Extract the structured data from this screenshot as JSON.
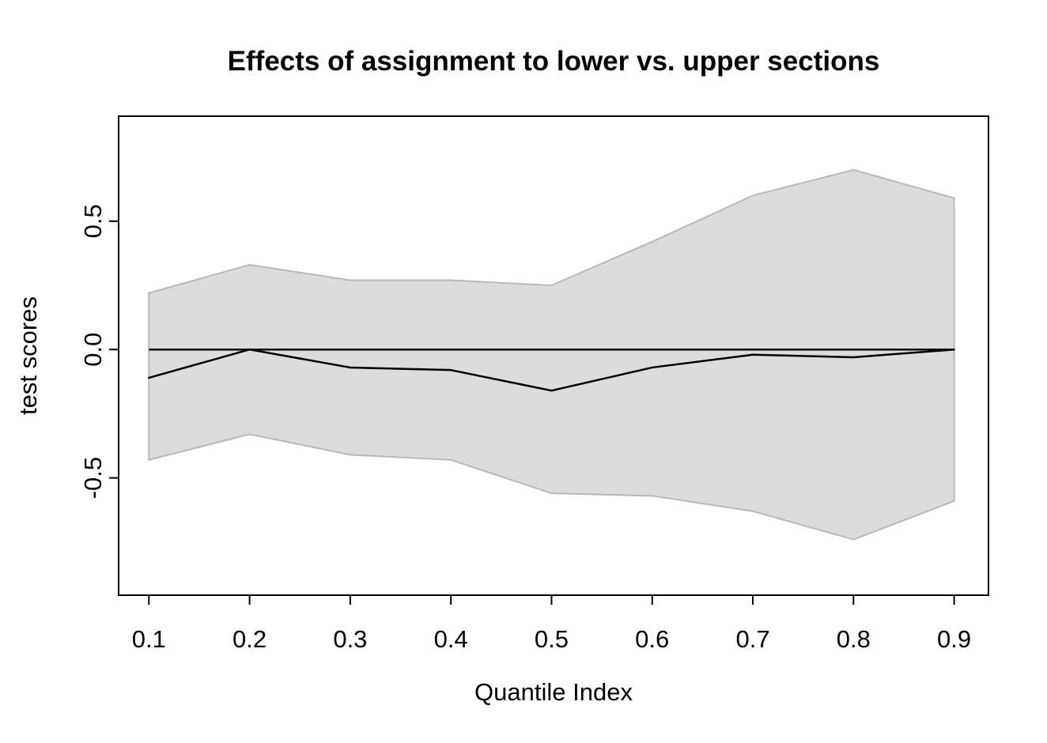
{
  "chart_data": {
    "type": "line",
    "title": "Effects of assignment to lower vs. upper sections",
    "xlabel": "Quantile Index",
    "ylabel": "test scores",
    "x": [
      0.1,
      0.2,
      0.3,
      0.4,
      0.5,
      0.6,
      0.7,
      0.8,
      0.9
    ],
    "series": [
      {
        "name": "estimated_effect",
        "style": "solid_black_line",
        "values": [
          -0.11,
          0.0,
          -0.07,
          -0.08,
          -0.16,
          -0.07,
          -0.02,
          -0.03,
          0.0
        ]
      },
      {
        "name": "ci_upper",
        "style": "gray_band_edge",
        "values": [
          0.22,
          0.33,
          0.27,
          0.27,
          0.25,
          0.42,
          0.6,
          0.7,
          0.59
        ]
      },
      {
        "name": "ci_lower",
        "style": "gray_band_edge",
        "values": [
          -0.43,
          -0.33,
          -0.41,
          -0.43,
          -0.56,
          -0.57,
          -0.63,
          -0.74,
          -0.59
        ]
      }
    ],
    "reference_line_y": 0,
    "x_ticks": {
      "values": [
        0.1,
        0.2,
        0.3,
        0.4,
        0.5,
        0.6,
        0.7,
        0.8,
        0.9
      ],
      "labels": [
        "0.1",
        "0.2",
        "0.3",
        "0.4",
        "0.5",
        "0.6",
        "0.7",
        "0.8",
        "0.9"
      ]
    },
    "y_ticks": {
      "values": [
        -0.5,
        0.0,
        0.5
      ],
      "labels": [
        "-0.5",
        "0.0",
        "0.5"
      ]
    },
    "xlim": [
      0.0699,
      0.9341
    ],
    "ylim": [
      -0.957,
      0.909
    ],
    "grid": false,
    "legend": "none",
    "colors": {
      "band_fill": "#dcdcdc",
      "band_border": "#b9b9b9",
      "line": "#000000",
      "box": "#000000",
      "background": "#ffffff"
    }
  }
}
